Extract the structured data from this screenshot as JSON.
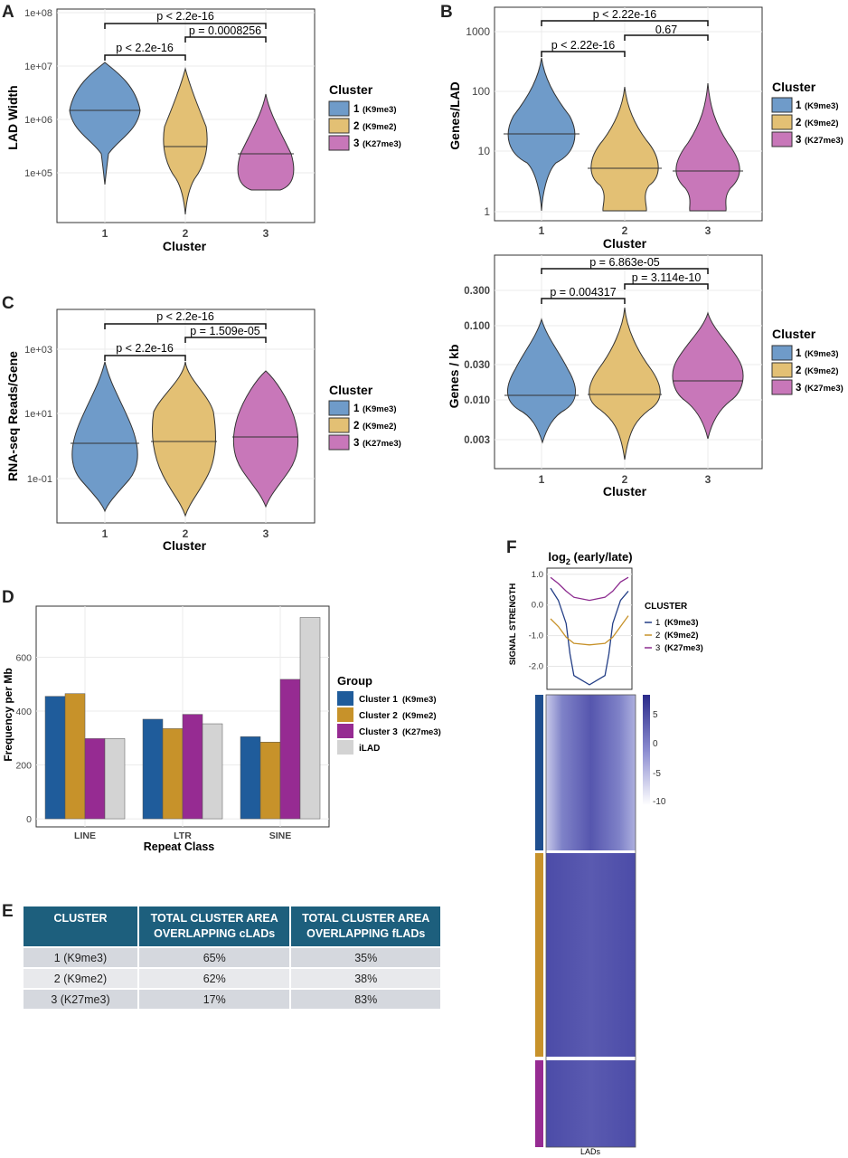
{
  "panels": {
    "A": {
      "label": "A",
      "xlabel": "Cluster",
      "ylabel": "LAD Width",
      "yticks": [
        "1e+05",
        "1e+06",
        "1e+07",
        "1e+08"
      ],
      "xticks": [
        "1",
        "2",
        "3"
      ],
      "comparisons": [
        {
          "pair": "1-3",
          "text": "p < 2.2e-16"
        },
        {
          "pair": "1-2",
          "text": "p < 2.2e-16"
        },
        {
          "pair": "2-3",
          "text": "p = 0.0008256"
        }
      ],
      "legend": {
        "title": "Cluster",
        "items": [
          {
            "num": "1",
            "desc": "(K9me3)"
          },
          {
            "num": "2",
            "desc": "(K9me2)"
          },
          {
            "num": "3",
            "desc": "(K27me3)"
          }
        ]
      }
    },
    "B": {
      "label": "B",
      "xlabel": "Cluster",
      "ylabel": "Genes/LAD",
      "yticks": [
        "1",
        "10",
        "100",
        "1000"
      ],
      "xticks": [
        "1",
        "2",
        "3"
      ],
      "comparisons": [
        {
          "pair": "1-3",
          "text": "p < 2.22e-16"
        },
        {
          "pair": "1-2",
          "text": "p < 2.22e-16"
        },
        {
          "pair": "2-3",
          "text": "0.67"
        }
      ],
      "legend": {
        "title": "Cluster",
        "items": [
          {
            "num": "1",
            "desc": "(K9me3)"
          },
          {
            "num": "2",
            "desc": "(K9me2)"
          },
          {
            "num": "3",
            "desc": "(K27me3)"
          }
        ]
      }
    },
    "B2": {
      "xlabel": "Cluster",
      "ylabel": "Genes / kb",
      "yticks": [
        "0.003",
        "0.010",
        "0.030",
        "0.100",
        "0.300"
      ],
      "xticks": [
        "1",
        "2",
        "3"
      ],
      "comparisons": [
        {
          "pair": "1-3",
          "text": "p = 6.863e-05"
        },
        {
          "pair": "1-2",
          "text": "p = 0.004317"
        },
        {
          "pair": "2-3",
          "text": "p = 3.114e-10"
        }
      ],
      "legend": {
        "title": "Cluster",
        "items": [
          {
            "num": "1",
            "desc": "(K9me3)"
          },
          {
            "num": "2",
            "desc": "(K9me2)"
          },
          {
            "num": "3",
            "desc": "(K27me3)"
          }
        ]
      }
    },
    "C": {
      "label": "C",
      "xlabel": "Cluster",
      "ylabel": "RNA-seq Reads/Gene",
      "yticks": [
        "1e-01",
        "1e+01",
        "1e+03"
      ],
      "xticks": [
        "1",
        "2",
        "3"
      ],
      "comparisons": [
        {
          "pair": "1-3",
          "text": "p < 2.2e-16"
        },
        {
          "pair": "1-2",
          "text": "p < 2.2e-16"
        },
        {
          "pair": "2-3",
          "text": "p = 1.509e-05"
        }
      ],
      "legend": {
        "title": "Cluster",
        "items": [
          {
            "num": "1",
            "desc": "(K9me3)"
          },
          {
            "num": "2",
            "desc": "(K9me2)"
          },
          {
            "num": "3",
            "desc": "(K27me3)"
          }
        ]
      }
    },
    "D": {
      "label": "D",
      "xlabel": "Repeat Class",
      "ylabel": "Frequency per Mb",
      "yticks": [
        "0",
        "200",
        "400",
        "600"
      ],
      "legend": {
        "title": "Group",
        "items": [
          {
            "num": "Cluster 1",
            "desc": "(K9me3)"
          },
          {
            "num": "Cluster 2",
            "desc": "(K9me2)"
          },
          {
            "num": "Cluster 3",
            "desc": "(K27me3)"
          },
          {
            "num": "iLAD",
            "desc": ""
          }
        ]
      }
    },
    "E": {
      "label": "E",
      "headers": [
        "CLUSTER",
        "TOTAL CLUSTER AREA OVERLAPPING cLADs",
        "TOTAL CLUSTER AREA OVERLAPPING fLADs"
      ],
      "rows": [
        [
          "1 (K9me3)",
          "65%",
          "35%"
        ],
        [
          "2 (K9me2)",
          "62%",
          "38%"
        ],
        [
          "3 (K27me3)",
          "17%",
          "83%"
        ]
      ]
    },
    "F": {
      "label": "F",
      "title_main": "log",
      "title_sub": "2",
      "title_rest": " (early/late)",
      "ylabel": "SIGNAL STRENGTH",
      "yticks": [
        "-2.0",
        "-1.0",
        "0.0",
        "1.0"
      ],
      "xlabel": "LADs",
      "legend": {
        "title": "CLUSTER",
        "items": [
          {
            "num": "1",
            "desc": "(K9me3)"
          },
          {
            "num": "2",
            "desc": "(K9me2)"
          },
          {
            "num": "3",
            "desc": "(K27me3)"
          }
        ]
      },
      "colorbar_ticks": [
        "5",
        "0",
        "-5",
        "-10"
      ]
    }
  },
  "colors": {
    "violin1": "#6f9bc9",
    "violin2": "#e3c074",
    "violin3": "#c877b9",
    "bar1": "#1f5c9b",
    "bar2": "#c7922a",
    "bar3": "#962b92",
    "bar4": "#d3d3d3",
    "line1": "#233e86",
    "line2": "#c7922a",
    "line3": "#8c2b8f",
    "heatmap": "#5a5ab0"
  },
  "chart_data": [
    {
      "type": "bar",
      "title": "",
      "xlabel": "Repeat Class",
      "ylabel": "Frequency per Mb",
      "categories": [
        "LINE",
        "LTR",
        "SINE"
      ],
      "series": [
        {
          "name": "Cluster 1 (K9me3)",
          "values": [
            455,
            370,
            305
          ]
        },
        {
          "name": "Cluster 2 (K9me2)",
          "values": [
            465,
            335,
            285
          ]
        },
        {
          "name": "Cluster 3 (K27me3)",
          "values": [
            298,
            388,
            518
          ]
        },
        {
          "name": "iLAD",
          "values": [
            298,
            353,
            748
          ]
        }
      ],
      "ylim": [
        0,
        750
      ],
      "grid": true,
      "legend": "right"
    },
    {
      "type": "line",
      "title": "log2 (early/late)",
      "xlabel": "LADs",
      "ylabel": "SIGNAL STRENGTH",
      "ylim": [
        -2.5,
        1.0
      ],
      "series": [
        {
          "name": "1 (K9me3)",
          "x": [
            0,
            0.1,
            0.2,
            0.25,
            0.3,
            0.5,
            0.7,
            0.75,
            0.8,
            0.9,
            1
          ],
          "values": [
            0.55,
            0.15,
            -0.6,
            -1.6,
            -2.3,
            -2.6,
            -2.3,
            -1.6,
            -0.6,
            0.15,
            0.45
          ]
        },
        {
          "name": "2 (K9me2)",
          "x": [
            0,
            0.1,
            0.2,
            0.3,
            0.5,
            0.7,
            0.8,
            0.9,
            1
          ],
          "values": [
            -0.45,
            -0.7,
            -1.05,
            -1.25,
            -1.3,
            -1.25,
            -1.05,
            -0.7,
            -0.35
          ]
        },
        {
          "name": "3 (K27me3)",
          "x": [
            0,
            0.1,
            0.2,
            0.3,
            0.5,
            0.7,
            0.8,
            0.9,
            1
          ],
          "values": [
            0.9,
            0.7,
            0.45,
            0.25,
            0.15,
            0.25,
            0.45,
            0.75,
            0.9
          ]
        }
      ],
      "legend": "right"
    }
  ]
}
